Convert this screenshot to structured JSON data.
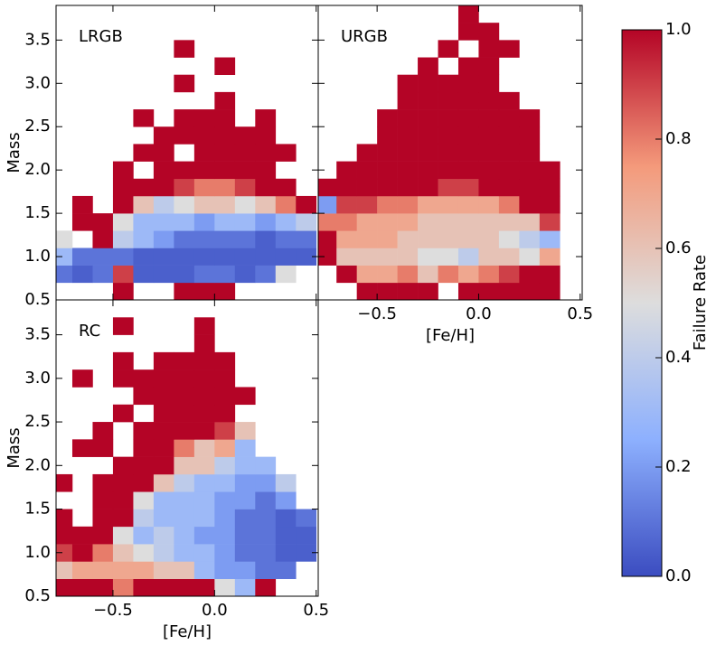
{
  "chart_data": [
    {
      "type": "heatmap",
      "label": "LRGB",
      "ylabel": "Mass",
      "xbins": [
        -0.8,
        -0.7,
        -0.6,
        -0.5,
        -0.4,
        -0.3,
        -0.2,
        -0.1,
        0,
        0.1,
        0.2,
        0.3,
        0.4,
        0.5
      ],
      "ybins": [
        0.5,
        0.7,
        0.9,
        1.1,
        1.3,
        1.5,
        1.7,
        1.9,
        2.1,
        2.3,
        2.5,
        2.7,
        2.9,
        3.1,
        3.3,
        3.5,
        3.7,
        3.9
      ],
      "xlim": [
        -0.78,
        0.51
      ],
      "ylim": [
        0.5,
        3.9
      ],
      "xticks": [
        -0.5,
        0,
        0.5
      ],
      "x_tick_labels": false,
      "yticks": [
        0.5,
        {
          "value": 1,
          "label": "1.0"
        },
        1.5,
        {
          "value": 2,
          "label": "2.0"
        },
        2.5,
        {
          "value": 3,
          "label": "3.0"
        },
        3.5
      ],
      "z": [
        [
          null,
          null,
          null,
          1,
          null,
          null,
          1,
          1,
          1,
          null,
          null,
          null,
          null
        ],
        [
          0.1,
          0.05,
          0.1,
          0.9,
          0.05,
          0.05,
          0.05,
          0.1,
          0.1,
          0.05,
          0.1,
          0.5,
          null
        ],
        [
          0.3,
          0.1,
          0.1,
          0.1,
          0.05,
          0.05,
          0.05,
          0.05,
          0.05,
          0.05,
          0.05,
          0.05,
          0.05
        ],
        [
          0.5,
          null,
          1,
          0.4,
          0.3,
          0.2,
          0.1,
          0.1,
          0.1,
          0.1,
          0.05,
          0.1,
          0.1
        ],
        [
          null,
          1,
          1,
          0.5,
          0.3,
          0.3,
          0.3,
          0.2,
          0.3,
          0.3,
          0.2,
          0.3,
          0.4
        ],
        [
          null,
          1,
          null,
          1,
          0.6,
          0.4,
          0.5,
          0.6,
          0.6,
          0.5,
          0.6,
          0.8,
          1
        ],
        [
          null,
          null,
          null,
          1,
          1,
          1,
          0.9,
          0.8,
          0.8,
          0.9,
          1,
          1,
          null
        ],
        [
          null,
          null,
          null,
          1,
          null,
          1,
          1,
          1,
          1,
          1,
          1,
          null,
          null
        ],
        [
          null,
          null,
          null,
          null,
          1,
          1,
          null,
          1,
          1,
          1,
          1,
          1,
          null
        ],
        [
          null,
          null,
          null,
          null,
          null,
          1,
          1,
          1,
          1,
          1,
          1,
          null,
          null
        ],
        [
          null,
          null,
          null,
          null,
          1,
          null,
          1,
          1,
          1,
          null,
          1,
          null,
          null
        ],
        [
          null,
          null,
          null,
          null,
          null,
          null,
          null,
          null,
          1,
          null,
          null,
          null,
          null
        ],
        [
          null,
          null,
          null,
          null,
          null,
          null,
          1,
          null,
          null,
          null,
          null,
          null,
          null
        ],
        [
          null,
          null,
          null,
          null,
          null,
          null,
          null,
          null,
          1,
          null,
          null,
          null,
          null
        ],
        [
          null,
          null,
          null,
          null,
          null,
          null,
          1,
          null,
          null,
          null,
          null,
          null,
          null
        ],
        [
          null,
          null,
          null,
          null,
          null,
          null,
          null,
          null,
          null,
          null,
          null,
          null,
          null
        ],
        [
          null,
          null,
          null,
          null,
          null,
          null,
          null,
          null,
          null,
          null,
          null,
          null,
          null
        ]
      ]
    },
    {
      "type": "heatmap",
      "label": "URGB",
      "xlabel": "[Fe/H]",
      "xbins": [
        -0.8,
        -0.7,
        -0.6,
        -0.5,
        -0.4,
        -0.3,
        -0.2,
        -0.1,
        0,
        0.1,
        0.2,
        0.3,
        0.4,
        0.5
      ],
      "ybins": [
        0.5,
        0.7,
        0.9,
        1.1,
        1.3,
        1.5,
        1.7,
        1.9,
        2.1,
        2.3,
        2.5,
        2.7,
        2.9,
        3.1,
        3.3,
        3.5,
        3.7,
        3.9
      ],
      "xlim": [
        -0.79,
        0.51
      ],
      "ylim": [
        0.5,
        3.9
      ],
      "xticks": [
        {
          "value": -0.5,
          "label": "−0.5"
        },
        {
          "value": 0,
          "label": "0.0"
        },
        0.5
      ],
      "yticks": [
        0.5,
        1,
        1.5,
        2,
        2.5,
        3,
        3.5
      ],
      "y_tick_labels": false,
      "z": [
        [
          null,
          null,
          1,
          1,
          1,
          1,
          null,
          1,
          1,
          1,
          1,
          1,
          null
        ],
        [
          null,
          1,
          0.7,
          0.7,
          0.8,
          0.6,
          0.8,
          0.7,
          0.8,
          0.9,
          1,
          1,
          null
        ],
        [
          1,
          0.6,
          0.6,
          0.6,
          0.6,
          0.5,
          0.5,
          0.4,
          0.6,
          0.6,
          0.5,
          0.7,
          null
        ],
        [
          1,
          0.7,
          0.7,
          0.7,
          0.6,
          0.6,
          0.6,
          0.6,
          0.6,
          0.5,
          0.4,
          0.3,
          null
        ],
        [
          0.8,
          0.8,
          0.7,
          0.7,
          0.7,
          0.6,
          0.6,
          0.6,
          0.6,
          0.6,
          0.6,
          0.9,
          null
        ],
        [
          0.2,
          0.9,
          0.9,
          0.8,
          0.8,
          0.7,
          0.7,
          0.7,
          0.7,
          0.8,
          1,
          1,
          null
        ],
        [
          1,
          1,
          1,
          1,
          1,
          1,
          0.9,
          0.9,
          1,
          1,
          1,
          1,
          null
        ],
        [
          null,
          1,
          1,
          1,
          1,
          1,
          1,
          1,
          1,
          1,
          1,
          1,
          null
        ],
        [
          null,
          null,
          1,
          1,
          1,
          1,
          1,
          1,
          1,
          1,
          1,
          null,
          null
        ],
        [
          null,
          null,
          null,
          1,
          1,
          1,
          1,
          1,
          1,
          1,
          1,
          null,
          null
        ],
        [
          null,
          null,
          null,
          1,
          1,
          1,
          1,
          1,
          1,
          1,
          1,
          null,
          null
        ],
        [
          null,
          null,
          null,
          null,
          1,
          1,
          1,
          1,
          1,
          1,
          null,
          null,
          null
        ],
        [
          null,
          null,
          null,
          null,
          1,
          1,
          1,
          1,
          1,
          null,
          null,
          null,
          null
        ],
        [
          null,
          null,
          null,
          null,
          null,
          1,
          null,
          1,
          1,
          null,
          null,
          null,
          null
        ],
        [
          null,
          null,
          null,
          null,
          null,
          null,
          1,
          null,
          1,
          1,
          null,
          null,
          null
        ],
        [
          null,
          null,
          null,
          null,
          null,
          null,
          null,
          1,
          1,
          null,
          null,
          null,
          null
        ],
        [
          null,
          null,
          null,
          null,
          null,
          null,
          null,
          1,
          null,
          null,
          null,
          null,
          null
        ]
      ]
    },
    {
      "type": "heatmap",
      "label": "RC",
      "xlabel": "[Fe/H]",
      "ylabel": "Mass",
      "xbins": [
        -0.8,
        -0.7,
        -0.6,
        -0.5,
        -0.4,
        -0.3,
        -0.2,
        -0.1,
        0,
        0.1,
        0.2,
        0.3,
        0.4,
        0.5
      ],
      "ybins": [
        0.5,
        0.7,
        0.9,
        1.1,
        1.3,
        1.5,
        1.7,
        1.9,
        2.1,
        2.3,
        2.5,
        2.7,
        2.9,
        3.1,
        3.3,
        3.5,
        3.7,
        3.9
      ],
      "xlim": [
        -0.78,
        0.51
      ],
      "ylim": [
        0.5,
        3.9
      ],
      "xticks": [
        {
          "value": -0.5,
          "label": "−0.5"
        },
        {
          "value": 0,
          "label": "0.0"
        },
        0.5
      ],
      "yticks": [
        0.5,
        {
          "value": 1,
          "label": "1.0"
        },
        1.5,
        {
          "value": 2,
          "label": "2.0"
        },
        2.5,
        {
          "value": 3,
          "label": "3.0"
        },
        3.5
      ],
      "z": [
        [
          1,
          1,
          1,
          0.8,
          1,
          1,
          1,
          1,
          0.5,
          0.3,
          1,
          null,
          null
        ],
        [
          0.6,
          0.7,
          0.7,
          0.7,
          0.7,
          0.6,
          0.6,
          0.3,
          0.2,
          0.2,
          0.1,
          0.1,
          null
        ],
        [
          0.9,
          1,
          0.8,
          0.6,
          0.5,
          0.4,
          0.3,
          0.3,
          0.2,
          0.1,
          0.1,
          0.05,
          0.05
        ],
        [
          1,
          1,
          1,
          0.5,
          0.3,
          0.4,
          0.3,
          0.2,
          0.2,
          0.1,
          0.1,
          0.05,
          0.05
        ],
        [
          1,
          null,
          1,
          1,
          0.4,
          0.3,
          0.3,
          0.3,
          0.2,
          0.1,
          0.1,
          0.05,
          0.1
        ],
        [
          null,
          null,
          1,
          1,
          0.5,
          0.3,
          0.3,
          0.3,
          0.2,
          0.2,
          0.1,
          0.2,
          null
        ],
        [
          1,
          null,
          1,
          1,
          1,
          0.6,
          0.4,
          0.3,
          0.3,
          0.2,
          0.2,
          0.4,
          null
        ],
        [
          null,
          null,
          null,
          1,
          1,
          1,
          0.6,
          0.6,
          0.4,
          0.3,
          0.3,
          null,
          null
        ],
        [
          null,
          1,
          1,
          null,
          1,
          1,
          0.8,
          0.6,
          0.7,
          0.3,
          null,
          null,
          null
        ],
        [
          null,
          null,
          1,
          null,
          1,
          1,
          1,
          1,
          0.9,
          0.6,
          null,
          null,
          null
        ],
        [
          null,
          null,
          null,
          1,
          null,
          1,
          1,
          1,
          1,
          null,
          null,
          null,
          null
        ],
        [
          null,
          null,
          null,
          null,
          1,
          1,
          1,
          1,
          1,
          1,
          null,
          null,
          null
        ],
        [
          null,
          1,
          null,
          1,
          1,
          1,
          1,
          1,
          1,
          null,
          null,
          null,
          null
        ],
        [
          null,
          null,
          null,
          1,
          null,
          1,
          1,
          1,
          1,
          null,
          null,
          null,
          null
        ],
        [
          null,
          null,
          null,
          null,
          null,
          null,
          null,
          1,
          null,
          null,
          null,
          null,
          null
        ],
        [
          null,
          null,
          null,
          1,
          null,
          null,
          null,
          1,
          null,
          null,
          null,
          null,
          null
        ],
        [
          null,
          null,
          null,
          null,
          null,
          null,
          null,
          null,
          null,
          null,
          null,
          null,
          null
        ]
      ]
    }
  ],
  "colorbar": {
    "label": "Failure Rate",
    "lim": [
      0,
      1
    ],
    "ticks": [
      {
        "value": 0,
        "label": "0.0"
      },
      0.2,
      0.4,
      0.6,
      0.8,
      {
        "value": 1,
        "label": "1.0"
      }
    ],
    "colors": [
      "#3b4cc0",
      "#8db0fe",
      "#dddddd",
      "#f49a7b",
      "#b40426"
    ]
  }
}
